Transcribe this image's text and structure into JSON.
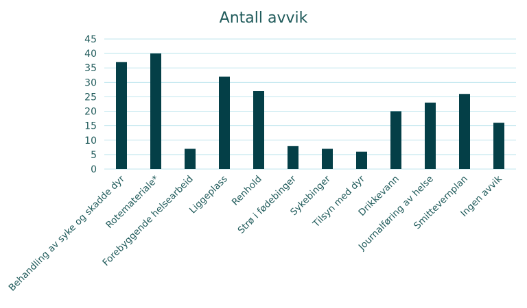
{
  "colors": {
    "bar": "#043f47",
    "grid": "#bfe6ee",
    "text": "#1f5a5a"
  },
  "chart_data": {
    "type": "bar",
    "title": "Antall avvik",
    "xlabel": "",
    "ylabel": "",
    "ylim": [
      0,
      45
    ],
    "yticks": [
      0,
      5,
      10,
      15,
      20,
      25,
      30,
      35,
      40,
      45
    ],
    "grid": true,
    "legend": "none",
    "categories": [
      "Behandling av syke og skadde dyr",
      "Rotemateriale*",
      "Forebyggende helsearbeid",
      "Liggeplass",
      "Renhold",
      "Strø i fødebinger",
      "Sykebinger",
      "Tilsyn med dyr",
      "Drikkevann",
      "Journalføring av helse",
      "Smittevernplan",
      "Ingen avvik"
    ],
    "values": [
      37,
      40,
      7,
      32,
      27,
      8,
      7,
      6,
      20,
      23,
      26,
      16
    ]
  }
}
